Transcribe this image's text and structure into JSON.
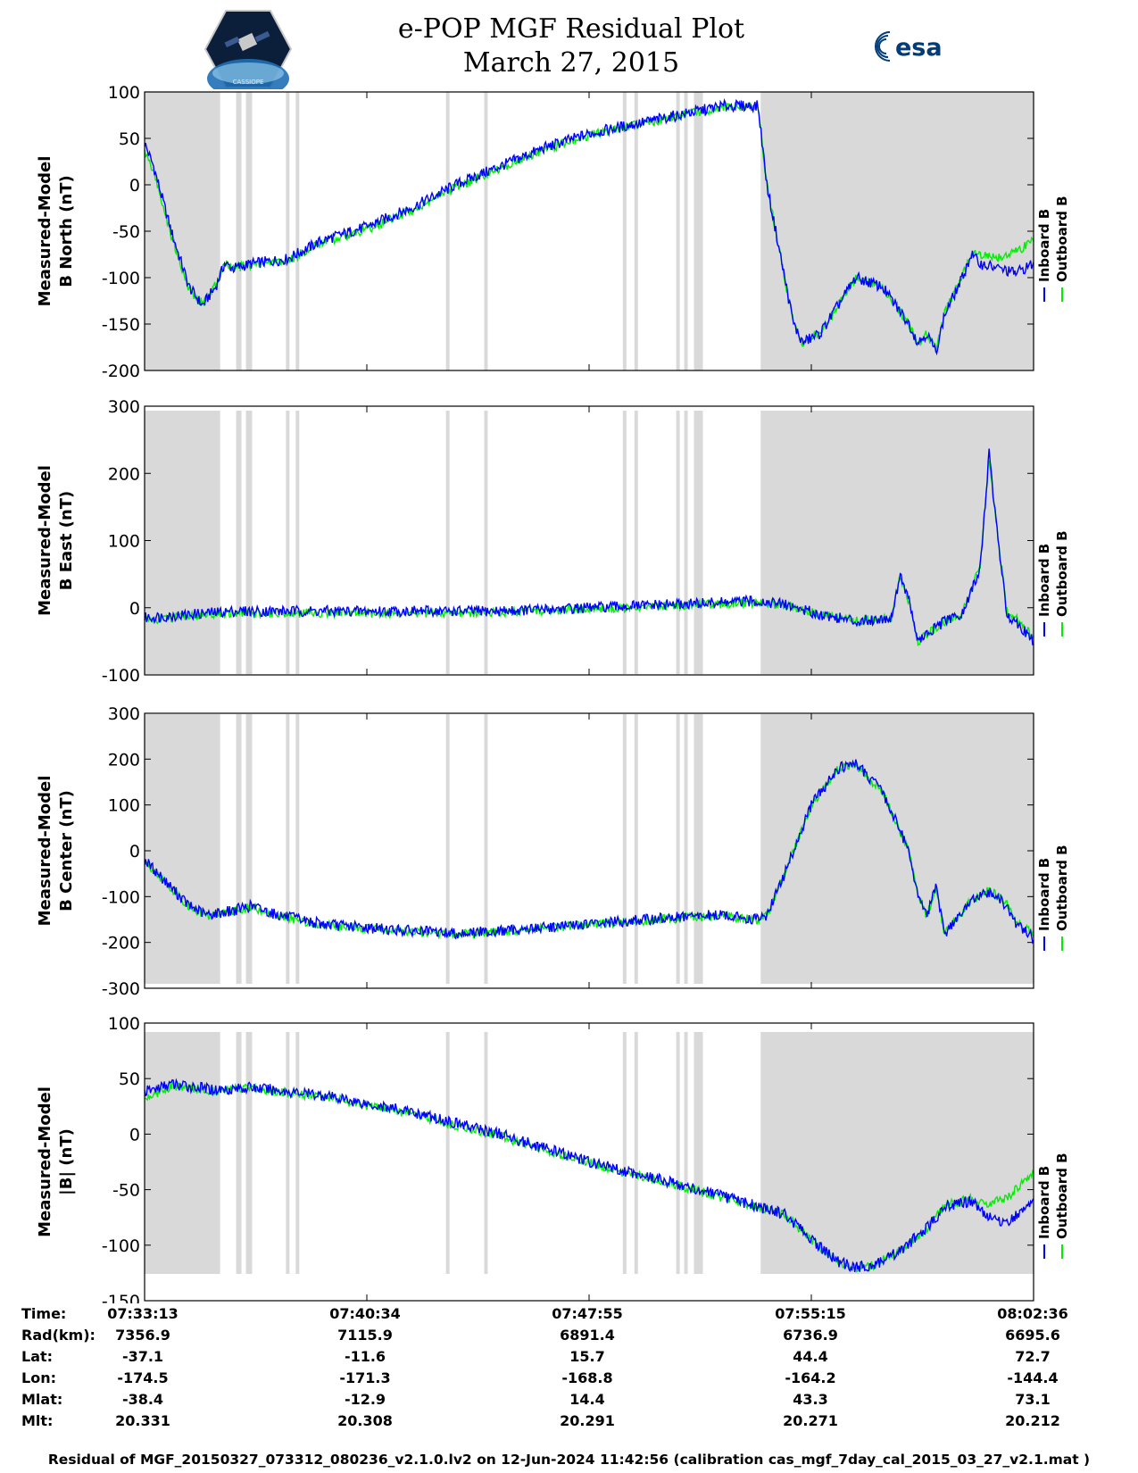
{
  "title": {
    "line1": "e-POP MGF Residual Plot",
    "line2": "March 27, 2015"
  },
  "logos": {
    "left": "CASSIOPE",
    "right": "esa"
  },
  "colors": {
    "inboard": "#0000ff",
    "outboard": "#00ee00",
    "shade": "#d9d9d9",
    "grid": "#cfcfcf"
  },
  "chart_data": [
    {
      "type": "line",
      "ylabel_line1": "Measured-Model",
      "ylabel_line2": "B North (nT)",
      "ylim": [
        -200,
        100
      ],
      "yticks": [
        "100",
        "50",
        "0",
        "-50",
        "-100",
        "-150",
        "-200"
      ],
      "ytick_values": [
        100,
        50,
        0,
        -50,
        -100,
        -150,
        -200
      ],
      "legend": [
        "Inboard B",
        "Outboard B"
      ],
      "series": [
        {
          "name": "Inboard B",
          "x": [
            0,
            0.01,
            0.03,
            0.05,
            0.065,
            0.08,
            0.09,
            0.1,
            0.12,
            0.16,
            0.2,
            0.25,
            0.3,
            0.35,
            0.4,
            0.45,
            0.5,
            0.55,
            0.6,
            0.65,
            0.69,
            0.7,
            0.72,
            0.73,
            0.74,
            0.76,
            0.8,
            0.83,
            0.86,
            0.87,
            0.88,
            0.89,
            0.9,
            0.92,
            0.93,
            0.94,
            0.96,
            0.98,
            1.0
          ],
          "y": [
            45,
            20,
            -50,
            -110,
            -130,
            -110,
            -85,
            -90,
            -85,
            -80,
            -60,
            -45,
            -25,
            0,
            20,
            40,
            55,
            65,
            75,
            85,
            85,
            0,
            -100,
            -150,
            -170,
            -160,
            -100,
            -110,
            -150,
            -170,
            -160,
            -180,
            -140,
            -100,
            -75,
            -85,
            -90,
            -95,
            -85
          ]
        },
        {
          "name": "Outboard B",
          "x": [
            0,
            0.01,
            0.03,
            0.05,
            0.065,
            0.08,
            0.09,
            0.1,
            0.12,
            0.16,
            0.2,
            0.25,
            0.3,
            0.35,
            0.4,
            0.45,
            0.5,
            0.55,
            0.6,
            0.65,
            0.69,
            0.7,
            0.72,
            0.73,
            0.74,
            0.76,
            0.8,
            0.83,
            0.86,
            0.87,
            0.88,
            0.89,
            0.9,
            0.92,
            0.93,
            0.94,
            0.96,
            0.98,
            1.0
          ],
          "y": [
            35,
            15,
            -55,
            -112,
            -128,
            -108,
            -85,
            -90,
            -86,
            -82,
            -62,
            -48,
            -28,
            -3,
            18,
            38,
            53,
            64,
            74,
            84,
            84,
            0,
            -100,
            -150,
            -170,
            -160,
            -100,
            -110,
            -150,
            -170,
            -160,
            -178,
            -138,
            -98,
            -72,
            -75,
            -78,
            -72,
            -60
          ]
        }
      ]
    },
    {
      "type": "line",
      "ylabel_line1": "Measured-Model",
      "ylabel_line2": "B East (nT)",
      "ylim": [
        -100,
        300
      ],
      "yticks": [
        "300",
        "200",
        "100",
        "0",
        "-100"
      ],
      "ytick_values": [
        300,
        200,
        100,
        0,
        -100
      ],
      "legend": [
        "Inboard B",
        "Outboard B"
      ],
      "series": [
        {
          "name": "Inboard B",
          "x": [
            0,
            0.05,
            0.1,
            0.2,
            0.3,
            0.4,
            0.5,
            0.6,
            0.69,
            0.72,
            0.76,
            0.8,
            0.84,
            0.85,
            0.86,
            0.87,
            0.88,
            0.9,
            0.92,
            0.94,
            0.95,
            0.96,
            0.97,
            0.98,
            1.0
          ],
          "y": [
            -15,
            -10,
            -5,
            -5,
            -5,
            -5,
            0,
            5,
            10,
            5,
            -10,
            -20,
            -15,
            50,
            10,
            -50,
            -40,
            -20,
            -10,
            60,
            230,
            100,
            -10,
            -20,
            -50
          ]
        },
        {
          "name": "Outboard B",
          "x": [
            0,
            0.05,
            0.1,
            0.2,
            0.3,
            0.4,
            0.5,
            0.6,
            0.69,
            0.72,
            0.76,
            0.8,
            0.84,
            0.85,
            0.86,
            0.87,
            0.88,
            0.9,
            0.92,
            0.94,
            0.95,
            0.96,
            0.97,
            0.98,
            1.0
          ],
          "y": [
            -18,
            -13,
            -8,
            -8,
            -8,
            -7,
            -2,
            3,
            8,
            4,
            -10,
            -20,
            -15,
            48,
            8,
            -50,
            -40,
            -20,
            -8,
            65,
            225,
            105,
            -5,
            -15,
            -45
          ]
        }
      ]
    },
    {
      "type": "line",
      "ylabel_line1": "Measured-Model",
      "ylabel_line2": "B Center (nT)",
      "ylim": [
        -300,
        300
      ],
      "yticks": [
        "300",
        "200",
        "100",
        "0",
        "-100",
        "-200",
        "-300"
      ],
      "ytick_values": [
        300,
        200,
        100,
        0,
        -100,
        -200,
        -300
      ],
      "legend": [
        "Inboard B",
        "Outboard B"
      ],
      "series": [
        {
          "name": "Inboard B",
          "x": [
            0,
            0.02,
            0.05,
            0.07,
            0.1,
            0.12,
            0.15,
            0.2,
            0.3,
            0.35,
            0.4,
            0.5,
            0.6,
            0.65,
            0.69,
            0.7,
            0.72,
            0.75,
            0.78,
            0.8,
            0.83,
            0.86,
            0.87,
            0.88,
            0.89,
            0.9,
            0.93,
            0.95,
            0.97,
            0.98,
            1.0
          ],
          "y": [
            -20,
            -60,
            -120,
            -140,
            -130,
            -120,
            -140,
            -160,
            -175,
            -180,
            -175,
            -160,
            -145,
            -140,
            -150,
            -140,
            -50,
            100,
            180,
            190,
            130,
            0,
            -100,
            -140,
            -80,
            -180,
            -110,
            -90,
            -120,
            -160,
            -190
          ]
        },
        {
          "name": "Outboard B",
          "x": [
            0,
            0.02,
            0.05,
            0.07,
            0.1,
            0.12,
            0.15,
            0.2,
            0.3,
            0.35,
            0.4,
            0.5,
            0.6,
            0.65,
            0.69,
            0.7,
            0.72,
            0.75,
            0.78,
            0.8,
            0.83,
            0.86,
            0.87,
            0.88,
            0.89,
            0.9,
            0.93,
            0.95,
            0.97,
            0.98,
            1.0
          ],
          "y": [
            -22,
            -62,
            -122,
            -142,
            -132,
            -122,
            -142,
            -162,
            -177,
            -182,
            -177,
            -162,
            -147,
            -142,
            -152,
            -142,
            -52,
            98,
            178,
            188,
            128,
            -2,
            -102,
            -142,
            -82,
            -182,
            -108,
            -86,
            -114,
            -152,
            -182
          ]
        }
      ]
    },
    {
      "type": "line",
      "ylabel_line1": "Measured-Model",
      "ylabel_line2": "|B| (nT)",
      "ylim": [
        -150,
        100
      ],
      "yticks": [
        "100",
        "50",
        "0",
        "-50",
        "-100",
        "-150"
      ],
      "ytick_values": [
        100,
        50,
        0,
        -50,
        -100,
        -150
      ],
      "legend": [
        "Inboard B",
        "Outboard B"
      ],
      "series": [
        {
          "name": "Inboard B",
          "x": [
            0,
            0.03,
            0.08,
            0.12,
            0.2,
            0.3,
            0.4,
            0.5,
            0.6,
            0.69,
            0.72,
            0.75,
            0.78,
            0.8,
            0.82,
            0.85,
            0.88,
            0.9,
            0.93,
            0.95,
            0.97,
            1.0
          ],
          "y": [
            38,
            45,
            40,
            42,
            35,
            20,
            0,
            -25,
            -45,
            -65,
            -72,
            -95,
            -115,
            -120,
            -118,
            -105,
            -85,
            -65,
            -60,
            -75,
            -80,
            -60
          ]
        },
        {
          "name": "Outboard B",
          "x": [
            0,
            0.03,
            0.08,
            0.12,
            0.2,
            0.3,
            0.4,
            0.5,
            0.6,
            0.69,
            0.72,
            0.75,
            0.78,
            0.8,
            0.82,
            0.85,
            0.88,
            0.9,
            0.93,
            0.95,
            0.97,
            1.0
          ],
          "y": [
            32,
            43,
            39,
            41,
            34,
            18,
            -2,
            -26,
            -46,
            -66,
            -72,
            -95,
            -115,
            -120,
            -118,
            -105,
            -85,
            -64,
            -58,
            -62,
            -58,
            -35
          ]
        }
      ]
    }
  ],
  "shaded_regions": [
    [
      0,
      0.085
    ],
    [
      0.103,
      0.109
    ],
    [
      0.114,
      0.121
    ],
    [
      0.159,
      0.163
    ],
    [
      0.17,
      0.174
    ],
    [
      0.339,
      0.343
    ],
    [
      0.382,
      0.386
    ],
    [
      0.538,
      0.542
    ],
    [
      0.551,
      0.555
    ],
    [
      0.598,
      0.602
    ],
    [
      0.607,
      0.611
    ],
    [
      0.618,
      0.628
    ],
    [
      0.693,
      1.0
    ]
  ],
  "table": {
    "labels": [
      "Time:",
      "Rad(km):",
      "Lat:",
      "Lon:",
      "Mlat:",
      "Mlt:"
    ],
    "columns": [
      [
        "07:33:13",
        "7356.9",
        "-37.1",
        "-174.5",
        "-38.4",
        "20.331"
      ],
      [
        "07:40:34",
        "7115.9",
        "-11.6",
        "-171.3",
        "-12.9",
        "20.308"
      ],
      [
        "07:47:55",
        "6891.4",
        "15.7",
        "-168.8",
        "14.4",
        "20.291"
      ],
      [
        "07:55:15",
        "6736.9",
        "44.4",
        "-164.2",
        "43.3",
        "20.271"
      ],
      [
        "08:02:36",
        "6695.6",
        "72.7",
        "-144.4",
        "73.1",
        "20.212"
      ]
    ]
  },
  "footer": "Residual of MGF_20150327_073312_080236_v2.1.0.lv2 on 12-Jun-2024 11:42:56 (calibration cas_mgf_7day_cal_2015_03_27_v2.1.mat )"
}
